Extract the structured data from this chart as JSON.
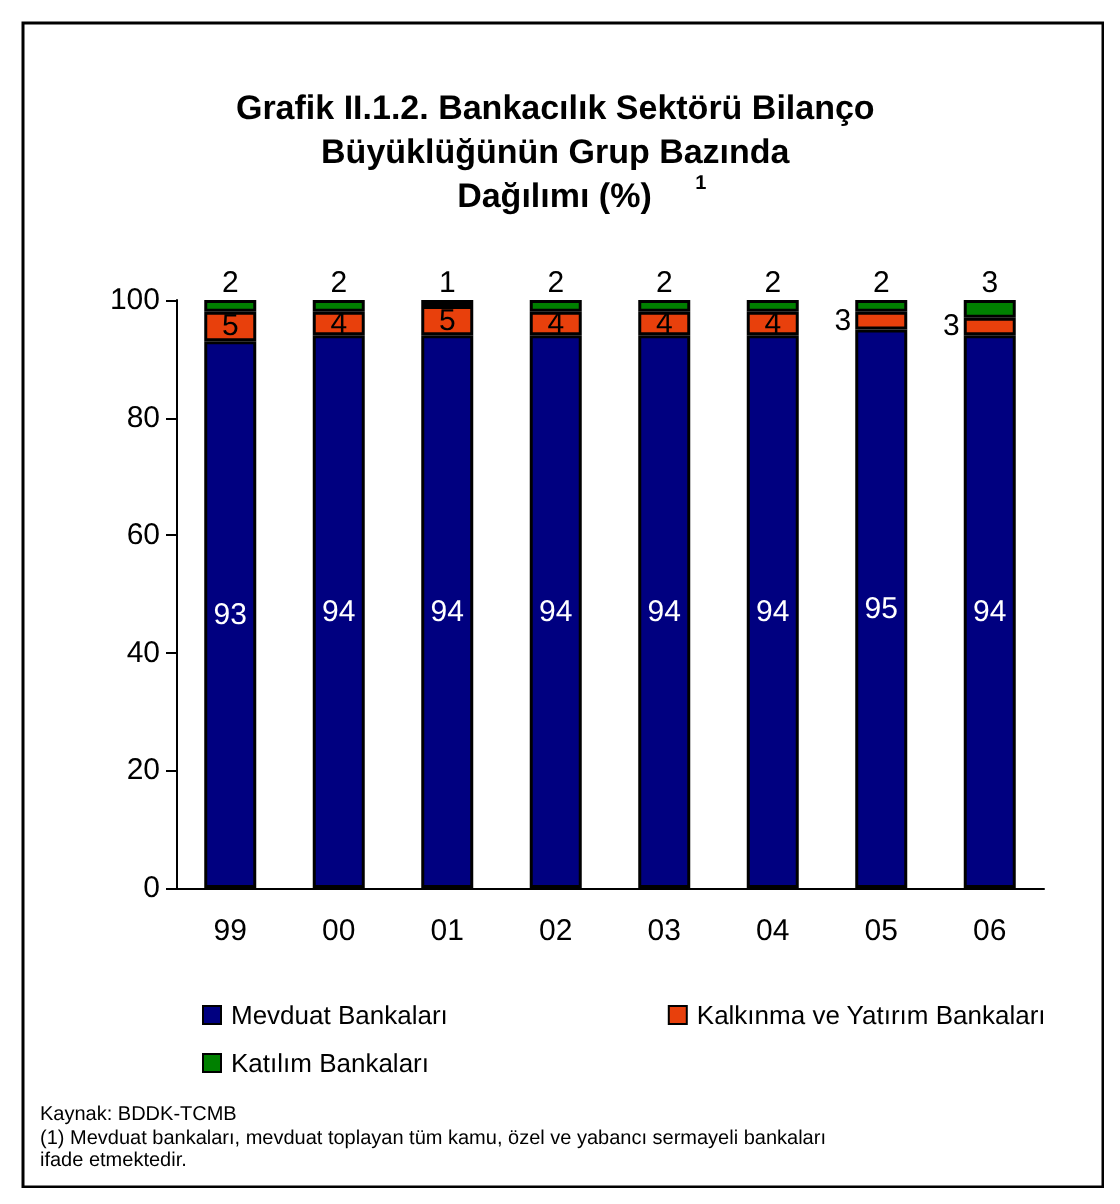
{
  "chart_data": {
    "type": "bar",
    "stacked": true,
    "title": "Grafik II.1.2. Bankacılık Sektörü Bilanço Büyüklüğünün Grup Bazında Dağılımı (%)$^{1}$",
    "categories": [
      "99",
      "00",
      "01",
      "02",
      "03",
      "04",
      "05",
      "06"
    ],
    "series": [
      {
        "name": "Mevduat Bankaları",
        "color": "#000080",
        "values": [
          93,
          94,
          94,
          94,
          94,
          94,
          95,
          94
        ]
      },
      {
        "name": "Kalkınma ve Yatırım Bankaları",
        "color": "#e8400c",
        "values": [
          5,
          4,
          5,
          4,
          4,
          4,
          3,
          3
        ]
      },
      {
        "name": "Katılım Bankaları",
        "color": "#008000",
        "values": [
          2,
          2,
          1,
          2,
          2,
          2,
          2,
          3
        ]
      }
    ],
    "ylim": [
      0,
      100
    ],
    "yticks": [
      0,
      20,
      40,
      60,
      80,
      100
    ],
    "grid": false,
    "legend": "bottom",
    "data_labels": true,
    "annotations": [
      "Kaynak: BDDK-TCMB",
      "(1) Mevduat bankaları, mevduat toplayan tüm kamu, özel ve yabancı sermayeli bankaları ifade etmektedir."
    ]
  }
}
